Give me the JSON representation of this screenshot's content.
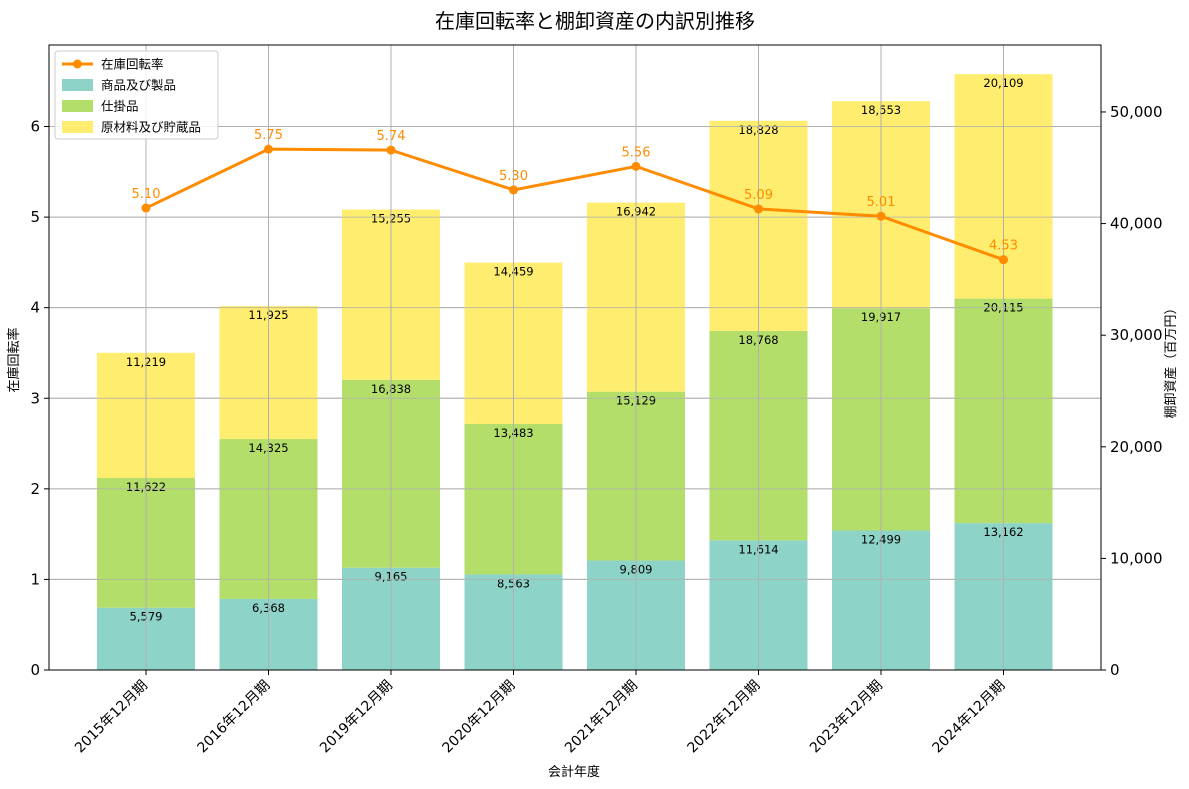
{
  "chart_data": {
    "type": "bar",
    "title": "在庫回転率と棚卸資産の内訳別推移",
    "xlabel": "会計年度",
    "ylabel_left": "在庫回転率",
    "ylabel_right": "棚卸資産（百万円）",
    "categories": [
      "2015年12月期",
      "2016年12月期",
      "2019年12月期",
      "2020年12月期",
      "2021年12月期",
      "2022年12月期",
      "2023年12月期",
      "2024年12月期"
    ],
    "stacked": true,
    "series": [
      {
        "name": "商品及び製品",
        "color": "#8dd3c7",
        "values": [
          5579,
          6368,
          9165,
          8563,
          9809,
          11614,
          12499,
          13162
        ],
        "labels": [
          "5,579",
          "6,368",
          "9,165",
          "8,563",
          "9,809",
          "11,614",
          "12,499",
          "13,162"
        ]
      },
      {
        "name": "仕掛品",
        "color": "#b3de69",
        "values": [
          11622,
          14325,
          16838,
          13483,
          15129,
          18768,
          19917,
          20115
        ],
        "labels": [
          "11,622",
          "14,325",
          "16,838",
          "13,483",
          "15,129",
          "18,768",
          "19,917",
          "20,115"
        ]
      },
      {
        "name": "原材料及び貯蔵品",
        "color": "#ffed6f",
        "values": [
          11219,
          11925,
          15255,
          14459,
          16942,
          18828,
          18553,
          20109
        ],
        "labels": [
          "11,219",
          "11,925",
          "15,255",
          "14,459",
          "16,942",
          "18,828",
          "18,553",
          "20,109"
        ]
      }
    ],
    "line_series": {
      "name": "在庫回転率",
      "color": "#ff8c00",
      "values": [
        5.1,
        5.75,
        5.74,
        5.3,
        5.56,
        5.09,
        5.01,
        4.53
      ],
      "labels": [
        "5.10",
        "5.75",
        "5.74",
        "5.30",
        "5.56",
        "5.09",
        "5.01",
        "4.53"
      ]
    },
    "ylim_left": [
      0,
      6.9
    ],
    "ylim_right": [
      0,
      56000
    ],
    "yticks_left": [
      "0",
      "1",
      "2",
      "3",
      "4",
      "5",
      "6"
    ],
    "yticks_right": [
      "0",
      "10,000",
      "20,000",
      "30,000",
      "40,000",
      "50,000"
    ],
    "grid": true,
    "legend_position": "top-left"
  }
}
